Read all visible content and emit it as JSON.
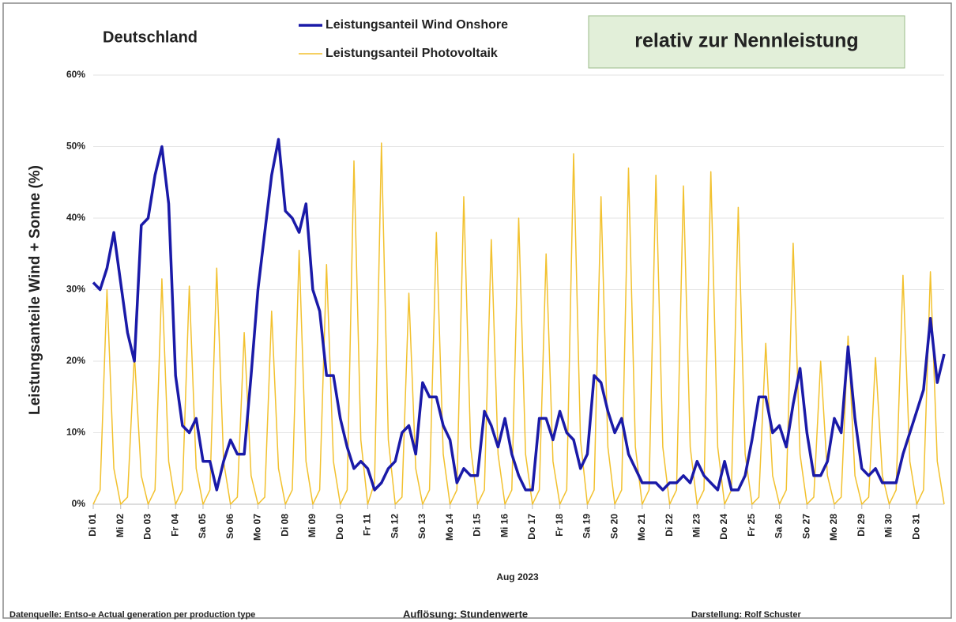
{
  "chart_data": {
    "type": "line",
    "title": "Deutschland",
    "annotation": "relativ zur Nennleistung",
    "y_label": "Leistungsanteile Wind + Sonne (%)",
    "x_label": "Aug 2023",
    "source": "Datenquelle: Entso-e  Actual generation per production type",
    "resolution": "Auflösung: Stundenwerte",
    "author": "Darstellung:  Rolf Schuster",
    "grid": true,
    "xlim": [
      0,
      31
    ],
    "ylim": [
      0,
      60
    ],
    "yticks": [
      {
        "value": 0,
        "label": "0%"
      },
      {
        "value": 10,
        "label": "10%"
      },
      {
        "value": 20,
        "label": "20%"
      },
      {
        "value": 30,
        "label": "30%"
      },
      {
        "value": 40,
        "label": "40%"
      },
      {
        "value": 50,
        "label": "50%"
      },
      {
        "value": 60,
        "label": "60%"
      }
    ],
    "xticks": [
      {
        "value": 0,
        "label": "Di 01"
      },
      {
        "value": 1,
        "label": "Mi 02"
      },
      {
        "value": 2,
        "label": "Do 03"
      },
      {
        "value": 3,
        "label": "Fr 04"
      },
      {
        "value": 4,
        "label": "Sa 05"
      },
      {
        "value": 5,
        "label": "So 06"
      },
      {
        "value": 6,
        "label": "Mo 07"
      },
      {
        "value": 7,
        "label": "Di 08"
      },
      {
        "value": 8,
        "label": "Mi 09"
      },
      {
        "value": 9,
        "label": "Do 10"
      },
      {
        "value": 10,
        "label": "Fr 11"
      },
      {
        "value": 11,
        "label": "Sa 12"
      },
      {
        "value": 12,
        "label": "So 13"
      },
      {
        "value": 13,
        "label": "Mo 14"
      },
      {
        "value": 14,
        "label": "Di 15"
      },
      {
        "value": 15,
        "label": "Mi 16"
      },
      {
        "value": 16,
        "label": "Do 17"
      },
      {
        "value": 17,
        "label": "Fr 18"
      },
      {
        "value": 18,
        "label": "Sa 19"
      },
      {
        "value": 19,
        "label": "So 20"
      },
      {
        "value": 20,
        "label": "Mo 21"
      },
      {
        "value": 21,
        "label": "Di 22"
      },
      {
        "value": 22,
        "label": "Mi 23"
      },
      {
        "value": 23,
        "label": "Do 24"
      },
      {
        "value": 24,
        "label": "Fr 25"
      },
      {
        "value": 25,
        "label": "Sa 26"
      },
      {
        "value": 26,
        "label": "So 27"
      },
      {
        "value": 27,
        "label": "Mo 28"
      },
      {
        "value": 28,
        "label": "Di 29"
      },
      {
        "value": 29,
        "label": "Mi 30"
      },
      {
        "value": 30,
        "label": "Do 31"
      }
    ],
    "x": [
      0,
      0.25,
      0.5,
      0.75,
      1,
      1.25,
      1.5,
      1.75,
      2,
      2.25,
      2.5,
      2.75,
      3,
      3.25,
      3.5,
      3.75,
      4,
      4.25,
      4.5,
      4.75,
      5,
      5.25,
      5.5,
      5.75,
      6,
      6.25,
      6.5,
      6.75,
      7,
      7.25,
      7.5,
      7.75,
      8,
      8.25,
      8.5,
      8.75,
      9,
      9.25,
      9.5,
      9.75,
      10,
      10.25,
      10.5,
      10.75,
      11,
      11.25,
      11.5,
      11.75,
      12,
      12.25,
      12.5,
      12.75,
      13,
      13.25,
      13.5,
      13.75,
      14,
      14.25,
      14.5,
      14.75,
      15,
      15.25,
      15.5,
      15.75,
      16,
      16.25,
      16.5,
      16.75,
      17,
      17.25,
      17.5,
      17.75,
      18,
      18.25,
      18.5,
      18.75,
      19,
      19.25,
      19.5,
      19.75,
      20,
      20.25,
      20.5,
      20.75,
      21,
      21.25,
      21.5,
      21.75,
      22,
      22.25,
      22.5,
      22.75,
      23,
      23.25,
      23.5,
      23.75,
      24,
      24.25,
      24.5,
      24.75,
      25,
      25.25,
      25.5,
      25.75,
      26,
      26.25,
      26.5,
      26.75,
      27,
      27.25,
      27.5,
      27.75,
      28,
      28.25,
      28.5,
      28.75,
      29,
      29.25,
      29.5,
      29.75,
      30,
      30.25,
      30.5,
      30.75,
      31
    ],
    "series": [
      {
        "name": "Leistungsanteil Wind Onshore",
        "color": "#1a1aa8",
        "width": 3.5,
        "values": [
          31,
          30,
          33,
          38,
          31,
          24,
          20,
          39,
          40,
          46,
          50,
          42,
          18,
          11,
          10,
          12,
          6,
          6,
          2,
          6,
          9,
          7,
          7,
          18,
          30,
          38,
          46,
          51,
          41,
          40,
          38,
          42,
          30,
          27,
          18,
          18,
          12,
          8,
          5,
          6,
          5,
          2,
          3,
          5,
          6,
          10,
          11,
          7,
          17,
          15,
          15,
          11,
          9,
          3,
          5,
          4,
          4,
          13,
          11,
          8,
          12,
          7,
          4,
          2,
          2,
          12,
          12,
          9,
          13,
          10,
          9,
          5,
          7,
          18,
          17,
          13,
          10,
          12,
          7,
          5,
          3,
          3,
          3,
          2,
          3,
          3,
          4,
          3,
          6,
          4,
          3,
          2,
          6,
          2,
          2,
          4,
          9,
          15,
          15,
          10,
          11,
          8,
          14,
          19,
          10,
          4,
          4,
          6,
          12,
          10,
          22,
          12,
          5,
          4,
          5,
          3,
          3,
          3,
          7,
          10,
          13,
          16,
          26,
          17,
          21
        ]
      },
      {
        "name": "Leistungsanteil Photovoltaik",
        "color": "#f2c12e",
        "width": 1.5,
        "values": [
          0,
          2,
          30,
          5,
          0,
          1,
          21,
          4,
          0,
          2,
          31.5,
          6,
          0,
          2,
          30.5,
          5,
          0,
          2,
          33,
          6,
          0,
          1,
          24,
          4,
          0,
          1,
          27,
          5,
          0,
          2,
          35.5,
          6,
          0,
          2,
          33.5,
          6,
          0,
          2,
          48,
          9,
          0,
          3,
          50.5,
          9,
          0,
          1,
          29.5,
          5,
          0,
          2,
          38,
          7,
          0,
          2,
          43,
          8,
          0,
          2,
          37,
          7,
          0,
          2,
          40,
          7,
          0,
          2,
          35,
          6,
          0,
          2,
          49,
          9,
          0,
          2,
          43,
          8,
          0,
          2,
          47,
          8,
          0,
          2,
          46,
          8,
          0,
          2,
          44.5,
          8,
          0,
          2,
          46.5,
          8,
          0,
          2,
          41.5,
          7,
          0,
          1,
          22.5,
          4,
          0,
          2,
          36.5,
          7,
          0,
          1,
          20,
          4,
          0,
          1,
          23.5,
          4,
          0,
          1,
          20.5,
          4,
          0,
          2,
          32,
          6,
          0,
          2,
          32.5,
          6,
          0
        ]
      }
    ]
  }
}
